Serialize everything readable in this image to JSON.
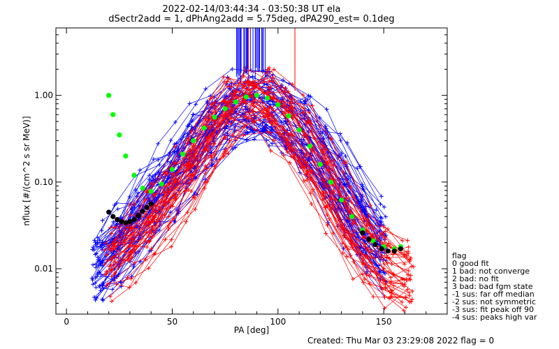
{
  "chart_data": {
    "type": "scatter",
    "title": "2022-02-14/03:44:34 - 03:50:38 UT ela",
    "subtitle": "dSectr2add = 1, dPhAng2add = 5.75deg, dPA290_est=   0.1deg",
    "xlabel": "PA [deg]",
    "ylabel": "nflux [#/(cm^2 s sr MeV)]",
    "xlim": [
      -5,
      180
    ],
    "ylim": [
      0.003,
      6
    ],
    "yscale": "log",
    "x_ticks": [
      {
        "value": 0,
        "label": "0"
      },
      {
        "value": 50,
        "label": "50"
      },
      {
        "value": 100,
        "label": "100"
      },
      {
        "value": 150,
        "label": "150"
      }
    ],
    "y_ticks": [
      {
        "value": 0.01,
        "label": "0.01"
      },
      {
        "value": 0.1,
        "label": "0.10"
      },
      {
        "value": 1.0,
        "label": "1.00"
      }
    ],
    "series": [
      {
        "color": "#0000ff",
        "style": "many thin lines with + markers",
        "x": [
          12,
          25,
          40,
          55,
          70,
          85,
          95,
          110,
          125,
          140,
          155
        ],
        "y": [
          0.01,
          0.02,
          0.06,
          0.18,
          0.5,
          0.88,
          0.8,
          0.45,
          0.14,
          0.035,
          0.012
        ]
      },
      {
        "color": "#ff0000",
        "style": "many thin lines with + markers",
        "x": [
          18,
          30,
          45,
          60,
          72,
          85,
          95,
          110,
          125,
          140,
          155,
          168
        ],
        "y": [
          0.01,
          0.015,
          0.04,
          0.12,
          0.4,
          0.98,
          0.85,
          0.35,
          0.08,
          0.018,
          0.008,
          0.007
        ]
      },
      {
        "color": "#00ff00",
        "style": "filled circles",
        "x": [
          20,
          22,
          25,
          28,
          32,
          36,
          40,
          45,
          50,
          55,
          60,
          65,
          70,
          75,
          80,
          85,
          90,
          95,
          100,
          105,
          110,
          115,
          120,
          125,
          130,
          135,
          140,
          145,
          150,
          155,
          158
        ],
        "y": [
          1.0,
          0.6,
          0.35,
          0.2,
          0.12,
          0.085,
          0.078,
          0.095,
          0.14,
          0.21,
          0.3,
          0.42,
          0.56,
          0.7,
          0.84,
          0.96,
          1.0,
          0.93,
          0.78,
          0.58,
          0.4,
          0.26,
          0.16,
          0.1,
          0.062,
          0.04,
          0.028,
          0.021,
          0.018,
          0.017,
          0.018
        ]
      },
      {
        "color": "#000000",
        "style": "filled circles",
        "x": [
          20,
          22,
          24,
          26,
          28,
          30,
          32,
          34,
          36,
          38,
          40,
          140,
          143,
          146,
          149,
          152,
          155,
          158
        ],
        "y": [
          0.045,
          0.04,
          0.037,
          0.035,
          0.034,
          0.035,
          0.037,
          0.041,
          0.046,
          0.051,
          0.056,
          0.026,
          0.022,
          0.019,
          0.017,
          0.016,
          0.016,
          0.017
        ]
      }
    ],
    "legend": {
      "placement": "right",
      "title": "flag",
      "entries": [
        " 0 good fit",
        " 1 bad: not converge",
        " 2 bad: no fit",
        " 3 bad: bad fgm state",
        "-1 sus: far off median",
        "-2 sus: not symmetric",
        "-3 sus: fit peak off 90",
        "-4 sus: peaks high var"
      ]
    },
    "footer": "Created: Thu Mar 03 23:29:08 2022    flag = 0"
  }
}
